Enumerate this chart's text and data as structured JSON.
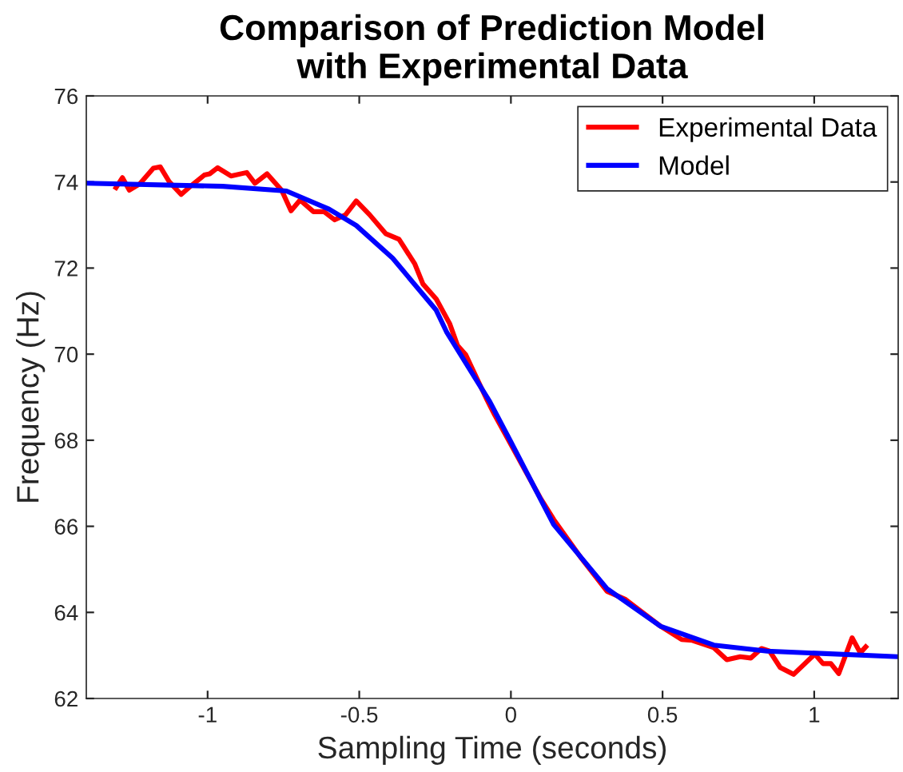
{
  "chart_data": {
    "type": "line",
    "title": "Comparison of Prediction Model\nwith Experimental Data",
    "xlabel": "Sampling Time (seconds)",
    "ylabel": "Frequency (Hz)",
    "xlim": [
      -1.4,
      1.277
    ],
    "xticks": [
      -1,
      -0.5,
      0,
      0.5,
      1
    ],
    "ylim": [
      62,
      76
    ],
    "yticks": [
      62,
      64,
      66,
      68,
      70,
      72,
      74,
      76
    ],
    "grid": false,
    "legend": "top right",
    "line_style": "solid",
    "marker": "none",
    "series": [
      {
        "name": "Experimental Data",
        "color": "#ff0000",
        "x": [
          -1.302,
          -1.281,
          -1.258,
          -1.223,
          -1.179,
          -1.156,
          -1.126,
          -1.087,
          -1.055,
          -1.011,
          -0.993,
          -0.967,
          -0.923,
          -0.871,
          -0.844,
          -0.804,
          -0.756,
          -0.725,
          -0.695,
          -0.651,
          -0.616,
          -0.581,
          -0.545,
          -0.51,
          -0.466,
          -0.413,
          -0.369,
          -0.317,
          -0.29,
          -0.246,
          -0.202,
          -0.176,
          -0.149,
          -0.079,
          -0.053,
          0.053,
          0.097,
          0.141,
          0.229,
          0.317,
          0.378,
          0.493,
          0.563,
          0.598,
          0.669,
          0.712,
          0.756,
          0.791,
          0.826,
          0.853,
          0.888,
          0.932,
          1.002,
          1.029,
          1.055,
          1.081,
          1.125,
          1.152,
          1.17
        ],
        "values": [
          73.87,
          74.1,
          73.81,
          73.96,
          74.32,
          74.35,
          74.0,
          73.71,
          73.91,
          74.16,
          74.19,
          74.33,
          74.14,
          74.22,
          73.97,
          74.19,
          73.81,
          73.33,
          73.58,
          73.31,
          73.31,
          73.12,
          73.24,
          73.56,
          73.24,
          72.8,
          72.67,
          72.1,
          71.63,
          71.28,
          70.71,
          70.2,
          69.99,
          68.94,
          68.58,
          67.22,
          66.66,
          66.16,
          65.29,
          64.49,
          64.3,
          63.68,
          63.37,
          63.35,
          63.18,
          62.9,
          62.97,
          62.94,
          63.16,
          63.1,
          62.72,
          62.56,
          63.03,
          62.81,
          62.81,
          62.58,
          63.41,
          63.06,
          63.2
        ]
      },
      {
        "name": "Model",
        "color": "#0000ff",
        "x": [
          -1.398,
          -0.95,
          -0.74,
          -0.6,
          -0.51,
          -0.39,
          -0.247,
          -0.211,
          -0.07,
          0,
          0.141,
          0.317,
          0.493,
          0.669,
          0.845,
          1.277
        ],
        "values": [
          73.97,
          73.9,
          73.79,
          73.37,
          72.99,
          72.23,
          71.03,
          70.5,
          68.9,
          67.96,
          66.04,
          64.55,
          63.68,
          63.24,
          63.1,
          62.97
        ]
      }
    ]
  }
}
